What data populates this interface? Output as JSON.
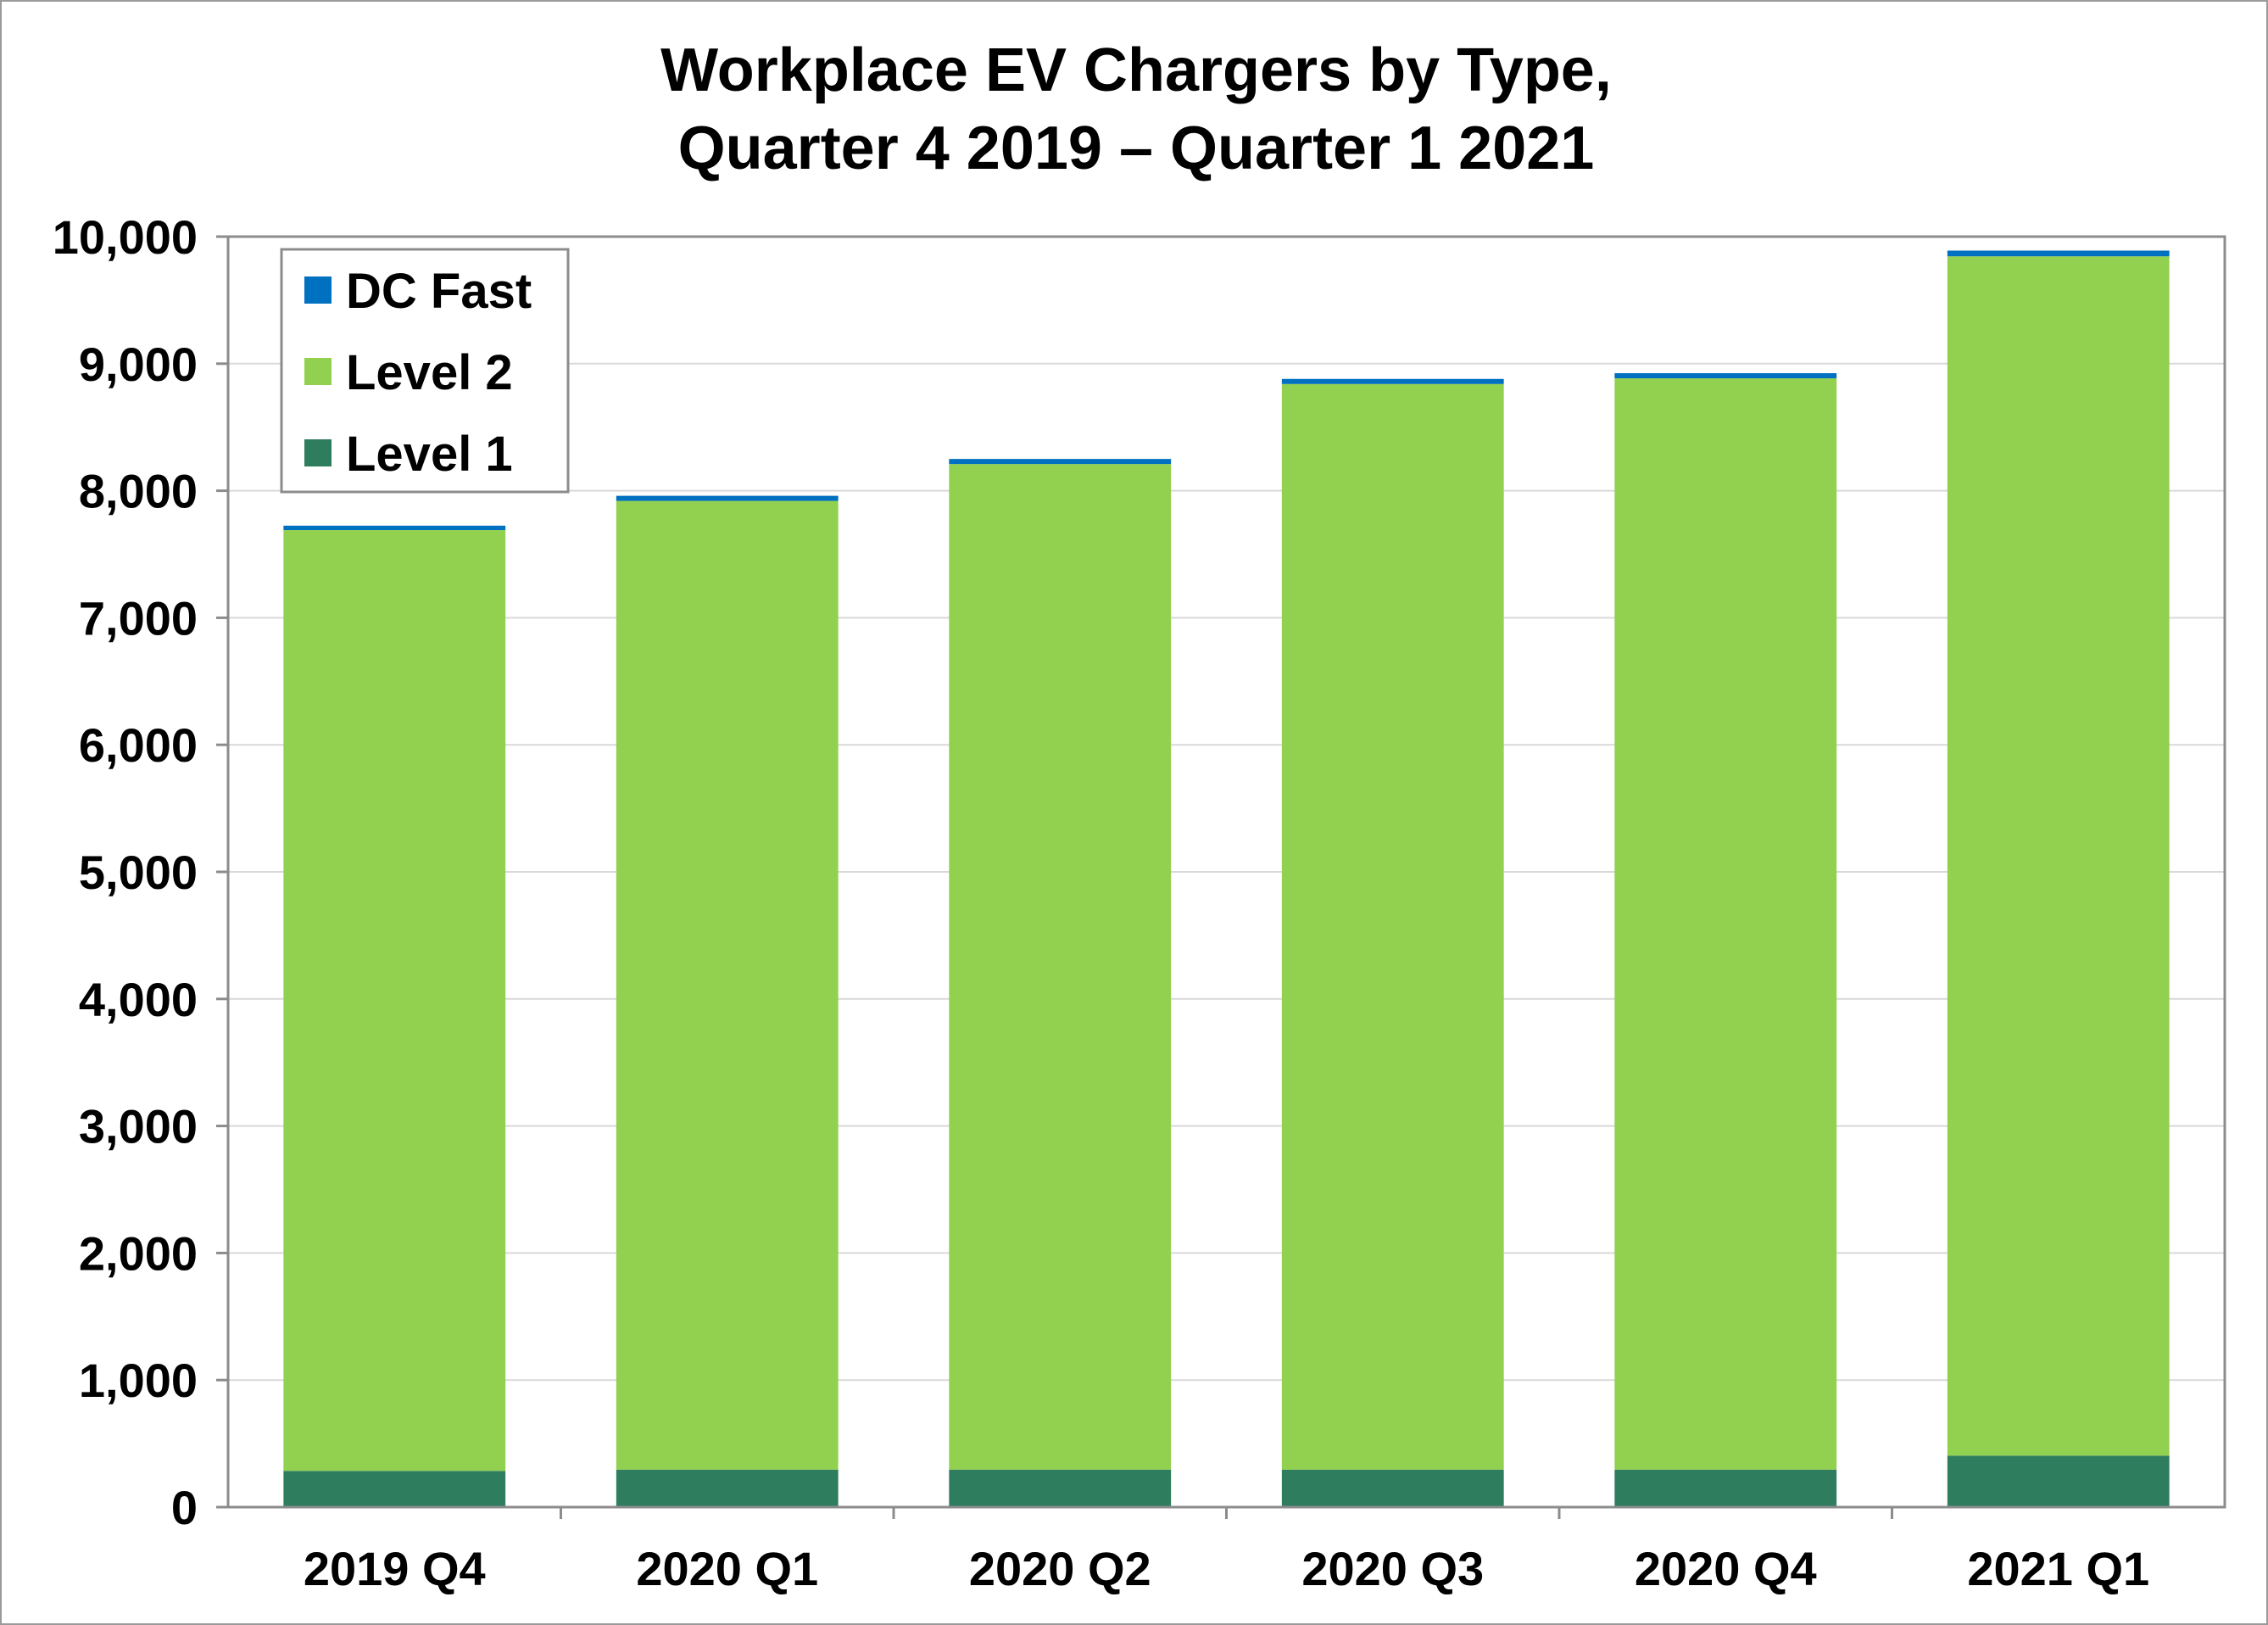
{
  "chart_data": {
    "type": "bar",
    "stacked": true,
    "title_lines": [
      "Workplace EV Chargers by Type,",
      "Quarter 4 2019 – Quarter 1 2021"
    ],
    "xlabel": "",
    "ylabel": "",
    "categories": [
      "2019 Q4",
      "2020 Q1",
      "2020 Q2",
      "2020 Q3",
      "2020 Q4",
      "2021 Q1"
    ],
    "series": [
      {
        "name": "Level 1",
        "color": "#2e7d5f",
        "values": [
          285,
          295,
          295,
          295,
          295,
          405
        ]
      },
      {
        "name": "Level 2",
        "color": "#92d050",
        "values": [
          7405,
          7625,
          7915,
          8545,
          8590,
          9440
        ]
      },
      {
        "name": "DC Fast",
        "color": "#0070c0",
        "values": [
          35,
          40,
          40,
          40,
          40,
          45
        ]
      }
    ],
    "ylim": [
      0,
      10000
    ],
    "yticks": [
      0,
      1000,
      2000,
      3000,
      4000,
      5000,
      6000,
      7000,
      8000,
      9000,
      10000
    ],
    "ytick_labels": [
      "0",
      "1,000",
      "2,000",
      "3,000",
      "4,000",
      "5,000",
      "6,000",
      "7,000",
      "8,000",
      "9,000",
      "10,000"
    ],
    "grid": true,
    "legend_position": "top-left",
    "legend_order": [
      "DC Fast",
      "Level 2",
      "Level 1"
    ]
  }
}
